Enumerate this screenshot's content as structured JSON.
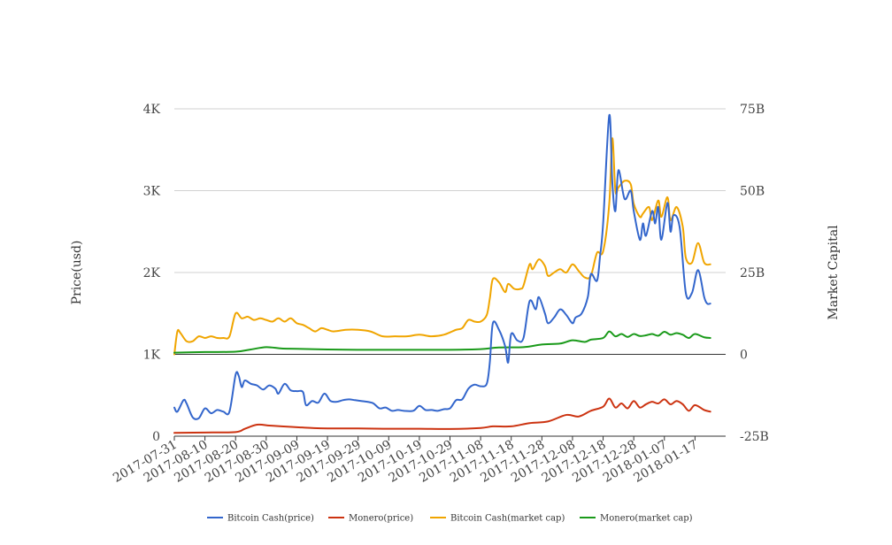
{
  "chart_data": {
    "type": "line",
    "ylabel_left": "Price(usd)",
    "ylabel_right": "Market Capital",
    "y_left": {
      "min": 0,
      "max": 4000,
      "ticks": [
        0,
        1000,
        2000,
        3000,
        4000
      ],
      "tick_labels": [
        "0",
        "1K",
        "2K",
        "3K",
        "4K"
      ]
    },
    "y_right": {
      "min": -25,
      "max": 75,
      "ticks": [
        -25,
        0,
        25,
        50,
        75
      ],
      "tick_labels": [
        "-25B",
        "0",
        "25B",
        "50B",
        "75B"
      ]
    },
    "x_range": [
      "2017-07-31",
      "2018-01-27"
    ],
    "x_tick_labels": [
      "2017-07-31",
      "2017-08-10",
      "2017-08-20",
      "2017-08-30",
      "2017-09-09",
      "2017-09-19",
      "2017-09-29",
      "2017-10-09",
      "2017-10-19",
      "2017-10-29",
      "2017-11-08",
      "2017-11-18",
      "2017-11-28",
      "2017-12-08",
      "2017-12-18",
      "2017-12-28",
      "2018-01-07",
      "2018-01-17"
    ],
    "grid": true,
    "legend_position": "bottom",
    "series": [
      {
        "name": "Bitcoin Cash(price)",
        "axis": "left",
        "color": "#3366cc",
        "points": [
          [
            "2017-07-31",
            350
          ],
          [
            "2017-08-01",
            300
          ],
          [
            "2017-08-03",
            440
          ],
          [
            "2017-08-04",
            400
          ],
          [
            "2017-08-06",
            230
          ],
          [
            "2017-08-08",
            220
          ],
          [
            "2017-08-10",
            340
          ],
          [
            "2017-08-12",
            280
          ],
          [
            "2017-08-14",
            320
          ],
          [
            "2017-08-16",
            300
          ],
          [
            "2017-08-18",
            300
          ],
          [
            "2017-08-20",
            750
          ],
          [
            "2017-08-21",
            740
          ],
          [
            "2017-08-22",
            600
          ],
          [
            "2017-08-23",
            680
          ],
          [
            "2017-08-25",
            640
          ],
          [
            "2017-08-27",
            620
          ],
          [
            "2017-08-29",
            570
          ],
          [
            "2017-08-31",
            620
          ],
          [
            "2017-09-02",
            580
          ],
          [
            "2017-09-03",
            520
          ],
          [
            "2017-09-05",
            640
          ],
          [
            "2017-09-07",
            560
          ],
          [
            "2017-09-09",
            550
          ],
          [
            "2017-09-11",
            540
          ],
          [
            "2017-09-12",
            380
          ],
          [
            "2017-09-14",
            430
          ],
          [
            "2017-09-16",
            410
          ],
          [
            "2017-09-18",
            520
          ],
          [
            "2017-09-20",
            430
          ],
          [
            "2017-09-22",
            420
          ],
          [
            "2017-09-24",
            440
          ],
          [
            "2017-09-26",
            450
          ],
          [
            "2017-09-28",
            440
          ],
          [
            "2017-09-30",
            430
          ],
          [
            "2017-10-02",
            420
          ],
          [
            "2017-10-04",
            400
          ],
          [
            "2017-10-06",
            340
          ],
          [
            "2017-10-08",
            350
          ],
          [
            "2017-10-10",
            310
          ],
          [
            "2017-10-12",
            320
          ],
          [
            "2017-10-14",
            310
          ],
          [
            "2017-10-17",
            310
          ],
          [
            "2017-10-19",
            370
          ],
          [
            "2017-10-21",
            320
          ],
          [
            "2017-10-23",
            320
          ],
          [
            "2017-10-25",
            310
          ],
          [
            "2017-10-27",
            330
          ],
          [
            "2017-10-29",
            340
          ],
          [
            "2017-10-31",
            440
          ],
          [
            "2017-11-02",
            450
          ],
          [
            "2017-11-04",
            580
          ],
          [
            "2017-11-06",
            630
          ],
          [
            "2017-11-08",
            610
          ],
          [
            "2017-11-10",
            640
          ],
          [
            "2017-11-11",
            900
          ],
          [
            "2017-11-12",
            1380
          ],
          [
            "2017-11-14",
            1300
          ],
          [
            "2017-11-16",
            1100
          ],
          [
            "2017-11-17",
            900
          ],
          [
            "2017-11-18",
            1250
          ],
          [
            "2017-11-20",
            1170
          ],
          [
            "2017-11-22",
            1200
          ],
          [
            "2017-11-24",
            1650
          ],
          [
            "2017-11-26",
            1550
          ],
          [
            "2017-11-27",
            1700
          ],
          [
            "2017-11-29",
            1500
          ],
          [
            "2017-11-30",
            1380
          ],
          [
            "2017-12-02",
            1450
          ],
          [
            "2017-12-04",
            1550
          ],
          [
            "2017-12-06",
            1480
          ],
          [
            "2017-12-08",
            1380
          ],
          [
            "2017-12-09",
            1450
          ],
          [
            "2017-12-11",
            1500
          ],
          [
            "2017-12-13",
            1700
          ],
          [
            "2017-12-14",
            1980
          ],
          [
            "2017-12-16",
            1900
          ],
          [
            "2017-12-17",
            2200
          ],
          [
            "2017-12-18",
            2600
          ],
          [
            "2017-12-20",
            3920
          ],
          [
            "2017-12-21",
            3100
          ],
          [
            "2017-12-22",
            2750
          ],
          [
            "2017-12-23",
            3250
          ],
          [
            "2017-12-25",
            2900
          ],
          [
            "2017-12-27",
            3000
          ],
          [
            "2017-12-28",
            2750
          ],
          [
            "2017-12-30",
            2400
          ],
          [
            "2017-12-31",
            2600
          ],
          [
            "2018-01-01",
            2450
          ],
          [
            "2018-01-03",
            2750
          ],
          [
            "2018-01-04",
            2600
          ],
          [
            "2018-01-05",
            2800
          ],
          [
            "2018-01-06",
            2400
          ],
          [
            "2018-01-08",
            2850
          ],
          [
            "2018-01-09",
            2500
          ],
          [
            "2018-01-10",
            2700
          ],
          [
            "2018-01-12",
            2550
          ],
          [
            "2018-01-14",
            1750
          ],
          [
            "2018-01-16",
            1750
          ],
          [
            "2018-01-18",
            2030
          ],
          [
            "2018-01-20",
            1700
          ],
          [
            "2018-01-21",
            1620
          ],
          [
            "2018-01-22",
            1620
          ]
        ]
      },
      {
        "name": "Monero(price)",
        "axis": "left",
        "color": "#cc3311",
        "points": [
          [
            "2017-07-31",
            40
          ],
          [
            "2017-08-10",
            45
          ],
          [
            "2017-08-20",
            50
          ],
          [
            "2017-08-23",
            90
          ],
          [
            "2017-08-27",
            140
          ],
          [
            "2017-08-31",
            130
          ],
          [
            "2017-09-04",
            120
          ],
          [
            "2017-09-09",
            110
          ],
          [
            "2017-09-14",
            100
          ],
          [
            "2017-09-19",
            95
          ],
          [
            "2017-09-29",
            95
          ],
          [
            "2017-10-09",
            90
          ],
          [
            "2017-10-19",
            90
          ],
          [
            "2017-10-29",
            88
          ],
          [
            "2017-11-08",
            100
          ],
          [
            "2017-11-12",
            120
          ],
          [
            "2017-11-18",
            120
          ],
          [
            "2017-11-24",
            160
          ],
          [
            "2017-11-30",
            180
          ],
          [
            "2017-12-06",
            260
          ],
          [
            "2017-12-10",
            240
          ],
          [
            "2017-12-14",
            310
          ],
          [
            "2017-12-18",
            360
          ],
          [
            "2017-12-20",
            460
          ],
          [
            "2017-12-22",
            350
          ],
          [
            "2017-12-24",
            400
          ],
          [
            "2017-12-26",
            340
          ],
          [
            "2017-12-28",
            430
          ],
          [
            "2017-12-30",
            350
          ],
          [
            "2018-01-01",
            390
          ],
          [
            "2018-01-03",
            420
          ],
          [
            "2018-01-05",
            400
          ],
          [
            "2018-01-07",
            450
          ],
          [
            "2018-01-09",
            390
          ],
          [
            "2018-01-11",
            430
          ],
          [
            "2018-01-13",
            390
          ],
          [
            "2018-01-15",
            310
          ],
          [
            "2018-01-17",
            380
          ],
          [
            "2018-01-20",
            320
          ],
          [
            "2018-01-22",
            300
          ]
        ]
      },
      {
        "name": "Bitcoin Cash(market cap)",
        "axis": "right",
        "color": "#f0a500",
        "points": [
          [
            "2017-07-31",
            0
          ],
          [
            "2017-08-01",
            7
          ],
          [
            "2017-08-02",
            6.5
          ],
          [
            "2017-08-04",
            4
          ],
          [
            "2017-08-06",
            4
          ],
          [
            "2017-08-08",
            5.5
          ],
          [
            "2017-08-10",
            5
          ],
          [
            "2017-08-12",
            5.5
          ],
          [
            "2017-08-14",
            5
          ],
          [
            "2017-08-16",
            5
          ],
          [
            "2017-08-18",
            5.5
          ],
          [
            "2017-08-20",
            12.5
          ],
          [
            "2017-08-22",
            11
          ],
          [
            "2017-08-24",
            11.5
          ],
          [
            "2017-08-26",
            10.5
          ],
          [
            "2017-08-28",
            11
          ],
          [
            "2017-08-30",
            10.5
          ],
          [
            "2017-09-01",
            10
          ],
          [
            "2017-09-03",
            11
          ],
          [
            "2017-09-05",
            10
          ],
          [
            "2017-09-07",
            11
          ],
          [
            "2017-09-09",
            9.5
          ],
          [
            "2017-09-11",
            9
          ],
          [
            "2017-09-13",
            8
          ],
          [
            "2017-09-15",
            7
          ],
          [
            "2017-09-17",
            8
          ],
          [
            "2017-09-19",
            7.5
          ],
          [
            "2017-09-21",
            7
          ],
          [
            "2017-09-25",
            7.5
          ],
          [
            "2017-09-29",
            7.5
          ],
          [
            "2017-10-03",
            7
          ],
          [
            "2017-10-07",
            5.5
          ],
          [
            "2017-10-11",
            5.5
          ],
          [
            "2017-10-15",
            5.5
          ],
          [
            "2017-10-19",
            6
          ],
          [
            "2017-10-23",
            5.5
          ],
          [
            "2017-10-27",
            6
          ],
          [
            "2017-10-31",
            7.5
          ],
          [
            "2017-11-02",
            8
          ],
          [
            "2017-11-04",
            10.5
          ],
          [
            "2017-11-06",
            10
          ],
          [
            "2017-11-08",
            10
          ],
          [
            "2017-11-10",
            12
          ],
          [
            "2017-11-11",
            17
          ],
          [
            "2017-11-12",
            23
          ],
          [
            "2017-11-14",
            22
          ],
          [
            "2017-11-16",
            19
          ],
          [
            "2017-11-17",
            21.5
          ],
          [
            "2017-11-19",
            20
          ],
          [
            "2017-11-21",
            20
          ],
          [
            "2017-11-22",
            21
          ],
          [
            "2017-11-24",
            27.5
          ],
          [
            "2017-11-25",
            26
          ],
          [
            "2017-11-27",
            29
          ],
          [
            "2017-11-29",
            27
          ],
          [
            "2017-11-30",
            24
          ],
          [
            "2017-12-02",
            25
          ],
          [
            "2017-12-04",
            26
          ],
          [
            "2017-12-06",
            25
          ],
          [
            "2017-12-08",
            27.5
          ],
          [
            "2017-12-10",
            25.5
          ],
          [
            "2017-12-12",
            23.5
          ],
          [
            "2017-12-14",
            24
          ],
          [
            "2017-12-16",
            31
          ],
          [
            "2017-12-18",
            31.5
          ],
          [
            "2017-12-20",
            46
          ],
          [
            "2017-12-21",
            66
          ],
          [
            "2017-12-22",
            50
          ],
          [
            "2017-12-23",
            51
          ],
          [
            "2017-12-25",
            53
          ],
          [
            "2017-12-27",
            52
          ],
          [
            "2017-12-28",
            46
          ],
          [
            "2017-12-30",
            42
          ],
          [
            "2017-12-31",
            43
          ],
          [
            "2018-01-02",
            45
          ],
          [
            "2018-01-03",
            41
          ],
          [
            "2018-01-05",
            47
          ],
          [
            "2018-01-06",
            42
          ],
          [
            "2018-01-08",
            48
          ],
          [
            "2018-01-09",
            41
          ],
          [
            "2018-01-11",
            45
          ],
          [
            "2018-01-13",
            39
          ],
          [
            "2018-01-14",
            29.5
          ],
          [
            "2018-01-16",
            28
          ],
          [
            "2018-01-18",
            34
          ],
          [
            "2018-01-20",
            28
          ],
          [
            "2018-01-22",
            27.5
          ]
        ]
      },
      {
        "name": "Monero(market cap)",
        "axis": "right",
        "color": "#1a9a1a",
        "points": [
          [
            "2017-07-31",
            0.5
          ],
          [
            "2017-08-10",
            0.7
          ],
          [
            "2017-08-20",
            0.8
          ],
          [
            "2017-08-25",
            1.5
          ],
          [
            "2017-08-30",
            2.2
          ],
          [
            "2017-09-04",
            1.8
          ],
          [
            "2017-09-09",
            1.7
          ],
          [
            "2017-09-19",
            1.5
          ],
          [
            "2017-09-29",
            1.4
          ],
          [
            "2017-10-09",
            1.4
          ],
          [
            "2017-10-19",
            1.4
          ],
          [
            "2017-10-29",
            1.4
          ],
          [
            "2017-11-08",
            1.6
          ],
          [
            "2017-11-14",
            2.1
          ],
          [
            "2017-11-22",
            2.2
          ],
          [
            "2017-11-28",
            3.0
          ],
          [
            "2017-12-04",
            3.3
          ],
          [
            "2017-12-08",
            4.3
          ],
          [
            "2017-12-12",
            3.8
          ],
          [
            "2017-12-14",
            4.5
          ],
          [
            "2017-12-18",
            5.0
          ],
          [
            "2017-12-20",
            7.0
          ],
          [
            "2017-12-22",
            5.5
          ],
          [
            "2017-12-24",
            6.2
          ],
          [
            "2017-12-26",
            5.3
          ],
          [
            "2017-12-28",
            6.2
          ],
          [
            "2017-12-30",
            5.6
          ],
          [
            "2018-01-01",
            5.8
          ],
          [
            "2018-01-03",
            6.2
          ],
          [
            "2018-01-05",
            5.7
          ],
          [
            "2018-01-07",
            6.9
          ],
          [
            "2018-01-09",
            6.0
          ],
          [
            "2018-01-11",
            6.5
          ],
          [
            "2018-01-13",
            6.0
          ],
          [
            "2018-01-15",
            5.0
          ],
          [
            "2018-01-17",
            6.2
          ],
          [
            "2018-01-20",
            5.2
          ],
          [
            "2018-01-22",
            5.0
          ]
        ]
      }
    ]
  }
}
